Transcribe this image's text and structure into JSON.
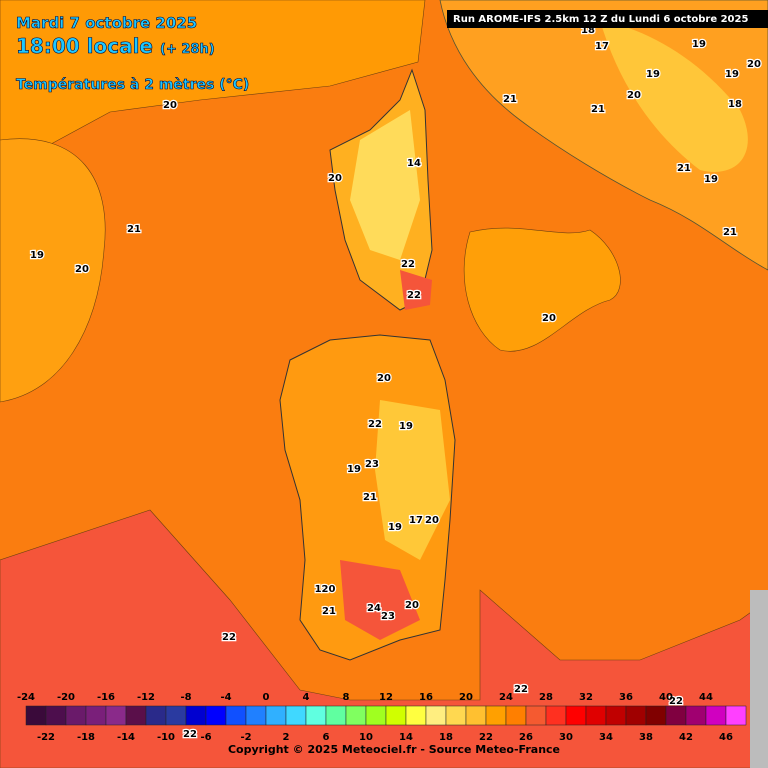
{
  "header": {
    "date": "Mardi 7 octobre 2025",
    "time": "18:00 locale",
    "lead": "(+ 28h)",
    "field": "Températures à 2 mètres (°C)",
    "run": "Run AROME-IFS 2.5km 12 Z du Lundi 6 octobre 2025"
  },
  "contour_labels": [
    20,
    21,
    19,
    20,
    21,
    21,
    20,
    22,
    22,
    14,
    20,
    20,
    19,
    22,
    23,
    19,
    21,
    19,
    17,
    20,
    120,
    21,
    24,
    23,
    20,
    22,
    22,
    22,
    22,
    19,
    19,
    20,
    18,
    21,
    19,
    21,
    20,
    19,
    17,
    18
  ],
  "colorbar": {
    "top_labels": [
      -24,
      -20,
      -16,
      -12,
      -8,
      -4,
      0,
      4,
      8,
      12,
      16,
      20,
      24,
      28,
      32,
      36,
      40,
      44
    ],
    "bottom_labels": [
      -22,
      -18,
      -14,
      -10,
      -6,
      -2,
      2,
      6,
      10,
      14,
      18,
      22,
      26,
      30,
      34,
      38,
      42,
      46
    ],
    "colors": [
      "#3a0a3a",
      "#4d0e4d",
      "#6a1a6a",
      "#7a1f7a",
      "#8a2a8a",
      "#5a0f4a",
      "#2a2a8a",
      "#2a3aa0",
      "#0000d0",
      "#0000ff",
      "#1050ff",
      "#2080ff",
      "#30b0ff",
      "#40d8ff",
      "#60ffe0",
      "#60ffa0",
      "#80ff60",
      "#a0ff20",
      "#d0ff00",
      "#ffff40",
      "#ffee80",
      "#ffd850",
      "#ffc030",
      "#ffa000",
      "#ff7f00",
      "#f55a30",
      "#ff3020",
      "#ff0000",
      "#e00000",
      "#c00000",
      "#a00000",
      "#800000",
      "#800040",
      "#a00070",
      "#d000c0",
      "#ff40ff"
    ]
  },
  "footer": {
    "copyright": "Copyright © 2025 Meteociel.fr - Source Meteo-France"
  }
}
